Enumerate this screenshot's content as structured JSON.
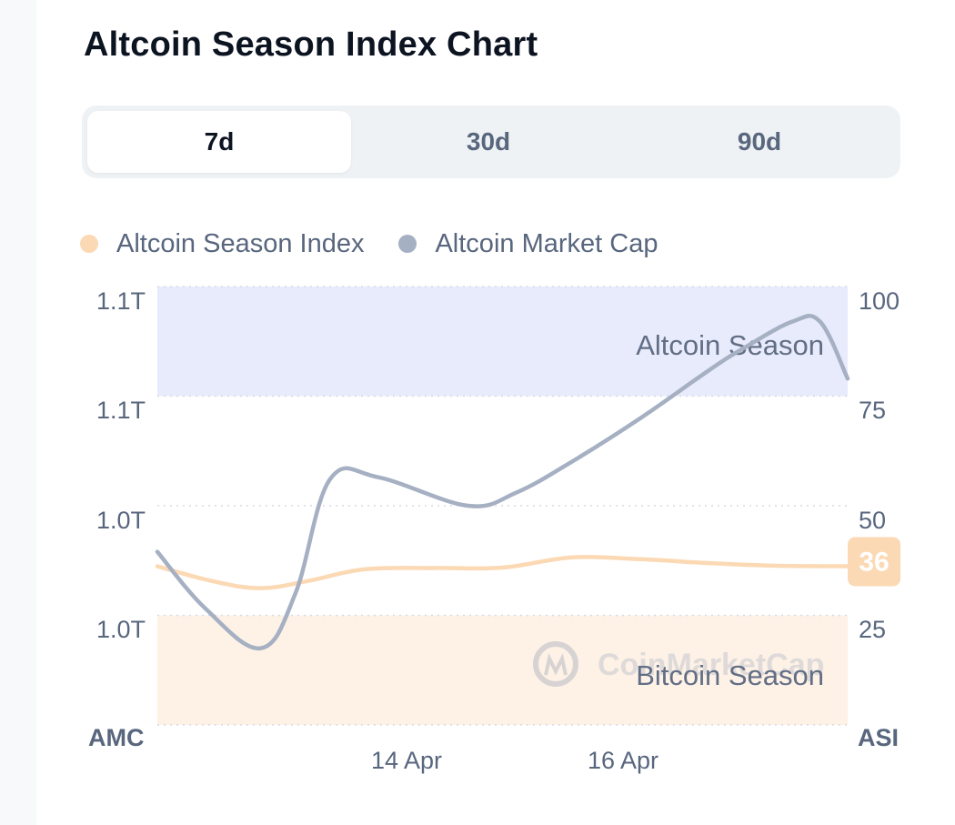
{
  "title": "Altcoin Season Index Chart",
  "tabs": [
    {
      "label": "7d",
      "active": true
    },
    {
      "label": "30d",
      "active": false
    },
    {
      "label": "90d",
      "active": false
    }
  ],
  "legend": [
    {
      "label": "Altcoin Season Index",
      "color": "#fbd9b4"
    },
    {
      "label": "Altcoin Market Cap",
      "color": "#a6b0c3"
    }
  ],
  "watermark": "CoinMarketCap",
  "chart_data": {
    "type": "line",
    "x_ticks": [
      "14 Apr",
      "16 Apr"
    ],
    "left_axis": {
      "label": "AMC",
      "ticks": [
        "1.1T",
        "1.1T",
        "1.0T",
        "1.0T"
      ]
    },
    "right_axis": {
      "label": "ASI",
      "ticks": [
        "100",
        "75",
        "50",
        "25"
      ],
      "range": [
        0,
        100
      ]
    },
    "bands": [
      {
        "label": "Altcoin Season",
        "from": 75,
        "to": 100,
        "color": "#e8ebfc"
      },
      {
        "label": "Bitcoin Season",
        "from": 0,
        "to": 25,
        "color": "#fef1e6"
      }
    ],
    "current_value": "36",
    "series": [
      {
        "name": "Altcoin Season Index",
        "color": "#fbd9b4",
        "x": [
          0,
          0.08,
          0.15,
          0.22,
          0.3,
          0.4,
          0.5,
          0.6,
          0.7,
          0.8,
          0.9,
          1.0
        ],
        "values": [
          36.2,
          32.8,
          31.2,
          32.9,
          35.5,
          35.8,
          35.9,
          38.2,
          37.8,
          36.9,
          36.3,
          36.2
        ]
      },
      {
        "name": "Altcoin Market Cap",
        "color": "#a6b0c3",
        "x": [
          0,
          0.07,
          0.15,
          0.2,
          0.25,
          0.32,
          0.45,
          0.52,
          0.6,
          0.7,
          0.8,
          0.85,
          0.92,
          0.96,
          1.0
        ],
        "values": [
          39.5,
          26.5,
          17.5,
          30,
          56,
          56.5,
          50,
          53,
          60,
          70,
          81,
          86,
          92,
          92,
          79
        ]
      }
    ]
  }
}
